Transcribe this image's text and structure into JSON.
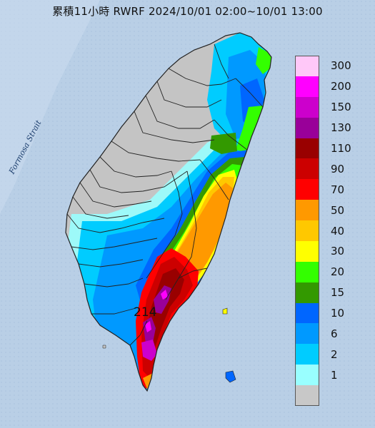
{
  "title": "累積11小時 RWRF 2024/10/01 02:00~10/01 13:00",
  "strait_label": "Formosa Strait",
  "peak_label": "214",
  "legend": [
    {
      "label": "300",
      "color": "#ffc8f8"
    },
    {
      "label": "200",
      "color": "#ff00ff"
    },
    {
      "label": "150",
      "color": "#cc00cc"
    },
    {
      "label": "130",
      "color": "#990099"
    },
    {
      "label": "110",
      "color": "#990000"
    },
    {
      "label": "90",
      "color": "#cc0000"
    },
    {
      "label": "70",
      "color": "#ff0000"
    },
    {
      "label": "50",
      "color": "#ff9900"
    },
    {
      "label": "40",
      "color": "#ffc800"
    },
    {
      "label": "30",
      "color": "#ffff00"
    },
    {
      "label": "20",
      "color": "#33ff00"
    },
    {
      "label": "15",
      "color": "#339900"
    },
    {
      "label": "10",
      "color": "#0066ff"
    },
    {
      "label": "6",
      "color": "#0099ff"
    },
    {
      "label": "2",
      "color": "#00ccff"
    },
    {
      "label": "1",
      "color": "#99ffff"
    },
    {
      "label": "",
      "color": "#c8c8c8"
    }
  ],
  "colors": {
    "sea": "#b9cfe6",
    "land_dry": "#c4c4c4",
    "boundary": "#222222"
  }
}
